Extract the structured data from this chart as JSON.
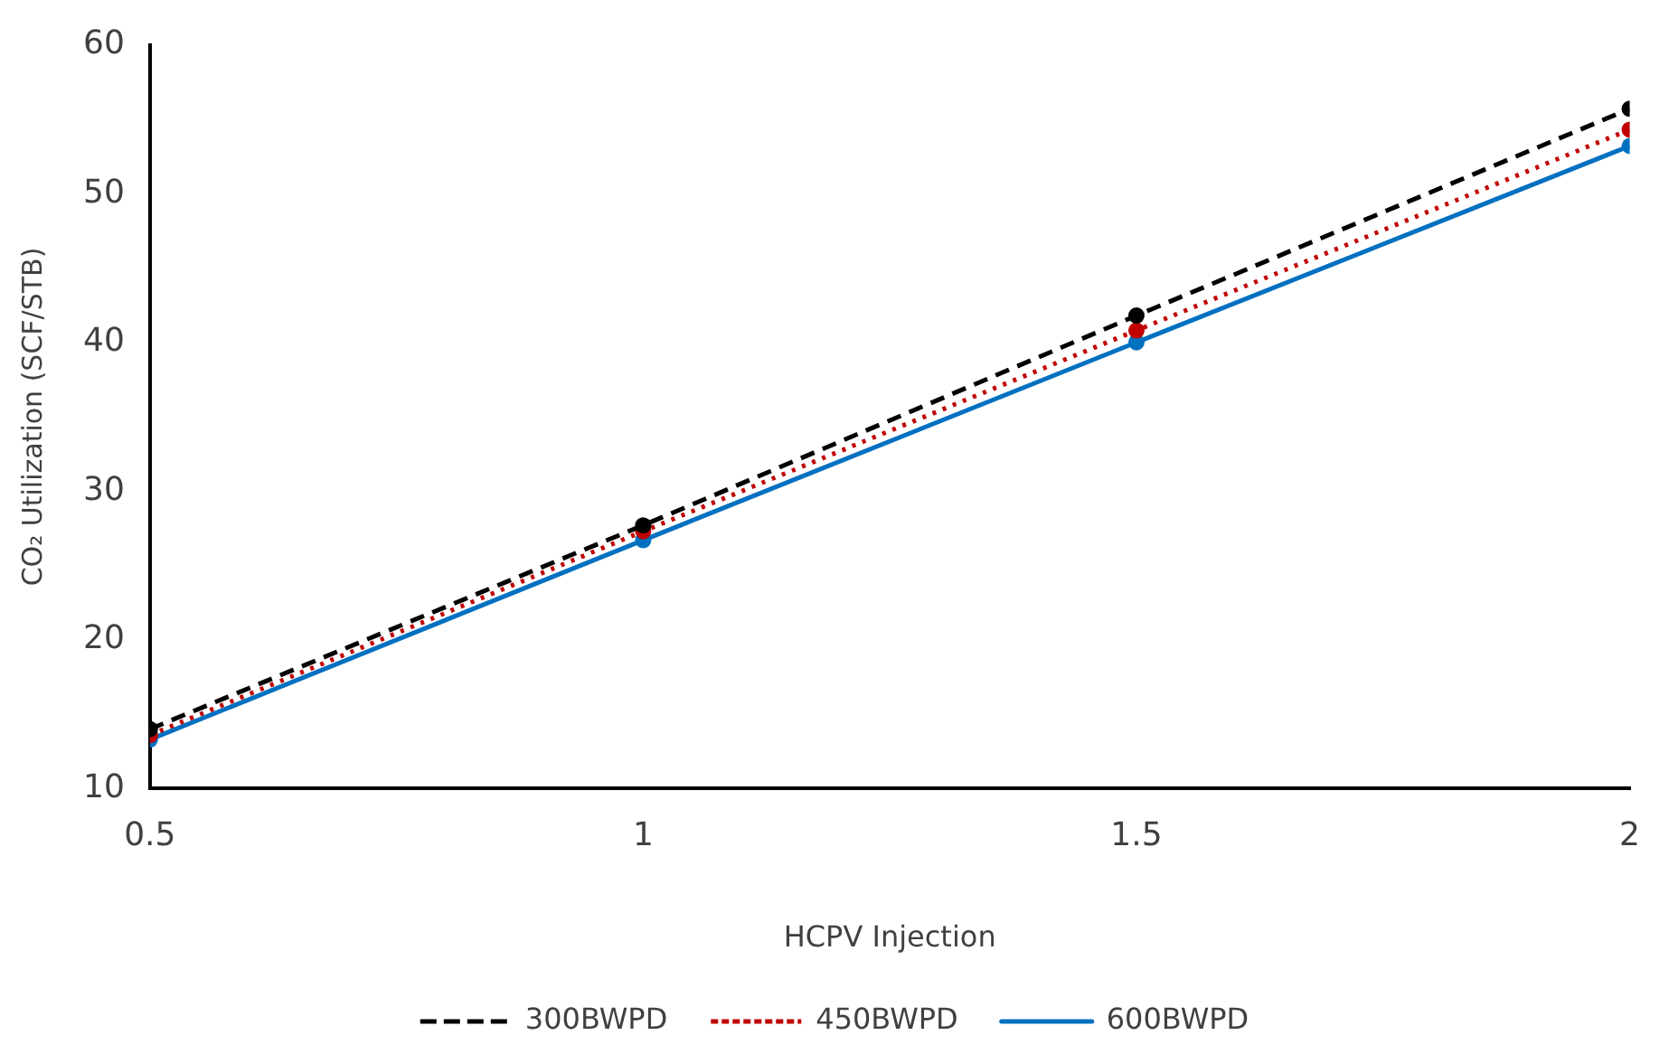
{
  "chart_data": {
    "type": "line",
    "xlabel": "HCPV Injection",
    "ylabel": "CO₂ Utilization (SCF/STB)",
    "x": [
      0.5,
      1,
      1.5,
      2
    ],
    "series": [
      {
        "name": "300BWPD",
        "color": "#000000",
        "line_style": "dashed",
        "values": [
          14.0,
          27.7,
          41.8,
          55.7
        ]
      },
      {
        "name": "450BWPD",
        "color": "#c00000",
        "line_style": "dotted",
        "values": [
          13.6,
          27.3,
          40.8,
          54.3
        ]
      },
      {
        "name": "600BWPD",
        "color": "#0070c0",
        "line_style": "solid",
        "values": [
          13.3,
          26.7,
          40.0,
          53.2
        ]
      }
    ],
    "xlim": [
      0.5,
      2
    ],
    "xticks": [
      0.5,
      1,
      1.5,
      2
    ],
    "ylim": [
      10,
      60
    ],
    "yticks": [
      10,
      20,
      30,
      40,
      50,
      60
    ],
    "grid": false,
    "legend": "bottom",
    "marker": "circle"
  }
}
